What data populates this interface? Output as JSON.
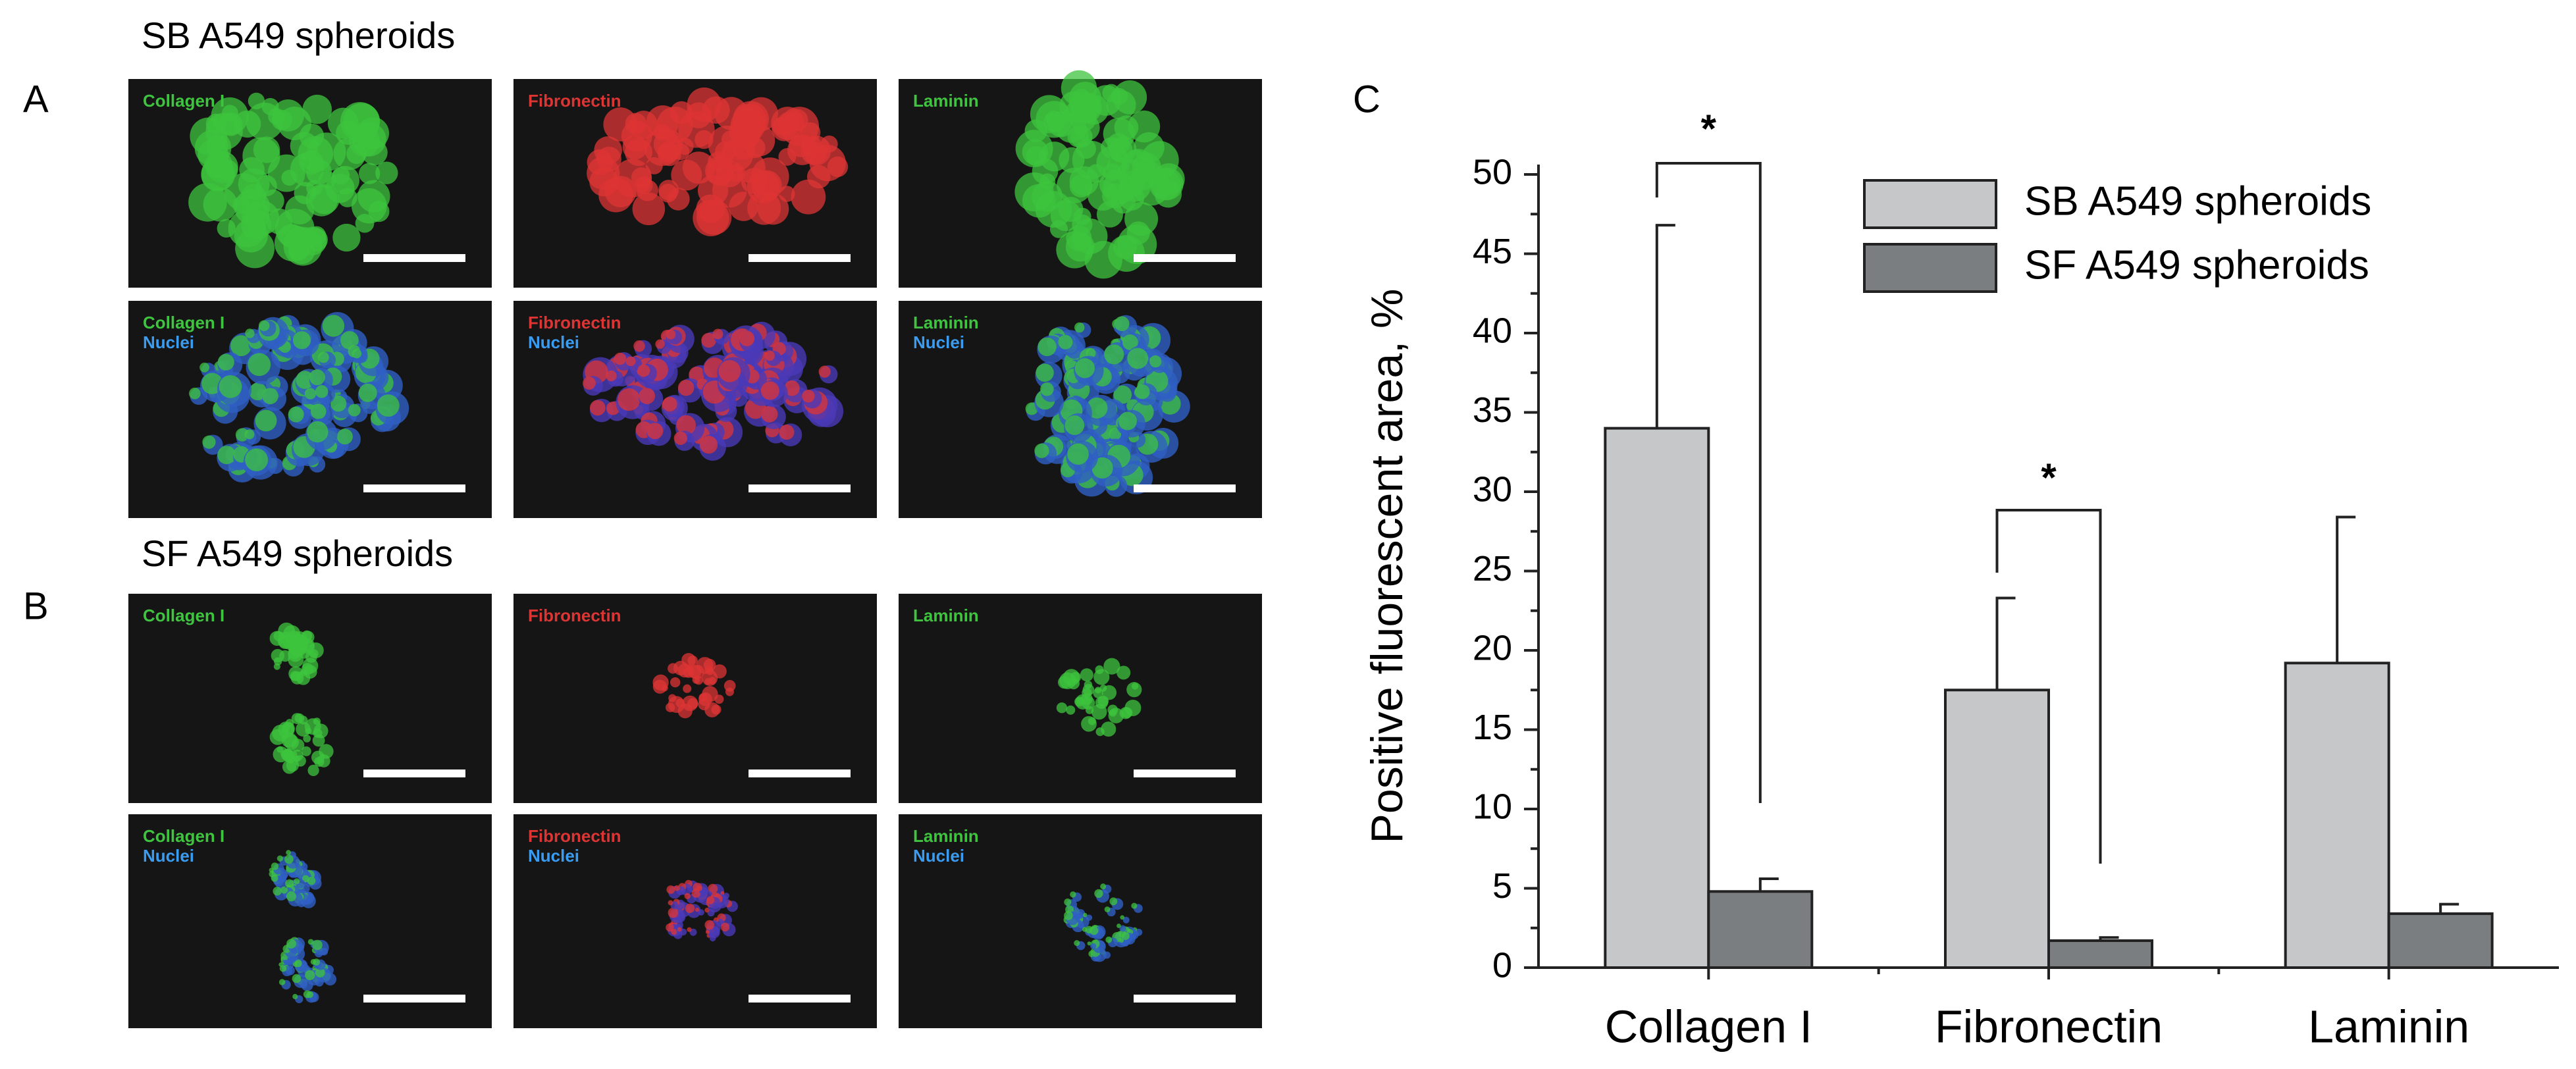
{
  "panel_a": {
    "label": "A",
    "title": "SB A549 spheroids",
    "images": [
      {
        "stain": "Collagen I"
      },
      {
        "stain": "Fibronectin"
      },
      {
        "stain": "Laminin"
      },
      {
        "stain": "Collagen I",
        "counterstain": "Nuclei"
      },
      {
        "stain": "Fibronectin",
        "counterstain": "Nuclei"
      },
      {
        "stain": "Laminin",
        "counterstain": "Nuclei"
      }
    ]
  },
  "panel_b": {
    "label": "B",
    "title": "SF A549 spheroids",
    "images": [
      {
        "stain": "Collagen I"
      },
      {
        "stain": "Fibronectin"
      },
      {
        "stain": "Laminin"
      },
      {
        "stain": "Collagen I",
        "counterstain": "Nuclei"
      },
      {
        "stain": "Fibronectin",
        "counterstain": "Nuclei"
      },
      {
        "stain": "Laminin",
        "counterstain": "Nuclei"
      }
    ]
  },
  "chart_data": {
    "type": "bar",
    "panel_label": "C",
    "y_label": "Positive fluorescent area, %",
    "categories": [
      "Collagen I",
      "Fibronectin",
      "Laminin"
    ],
    "series": [
      {
        "name": "SB A549 spheroids",
        "color": "#c6c7c9",
        "values": [
          34,
          17.5,
          19.2
        ],
        "errors": [
          12.8,
          5.8,
          9.2
        ]
      },
      {
        "name": "SF A549 spheroids",
        "color": "#7b7e81",
        "values": [
          4.8,
          1.7,
          3.4
        ],
        "errors": [
          0.8,
          0.2,
          0.6
        ]
      }
    ],
    "significance": [
      "*",
      "*"
    ],
    "ylim": [
      0,
      50
    ],
    "yticks": [
      0,
      5,
      10,
      15,
      20,
      25,
      30,
      35,
      40,
      45,
      50
    ],
    "legend": "upper right"
  }
}
